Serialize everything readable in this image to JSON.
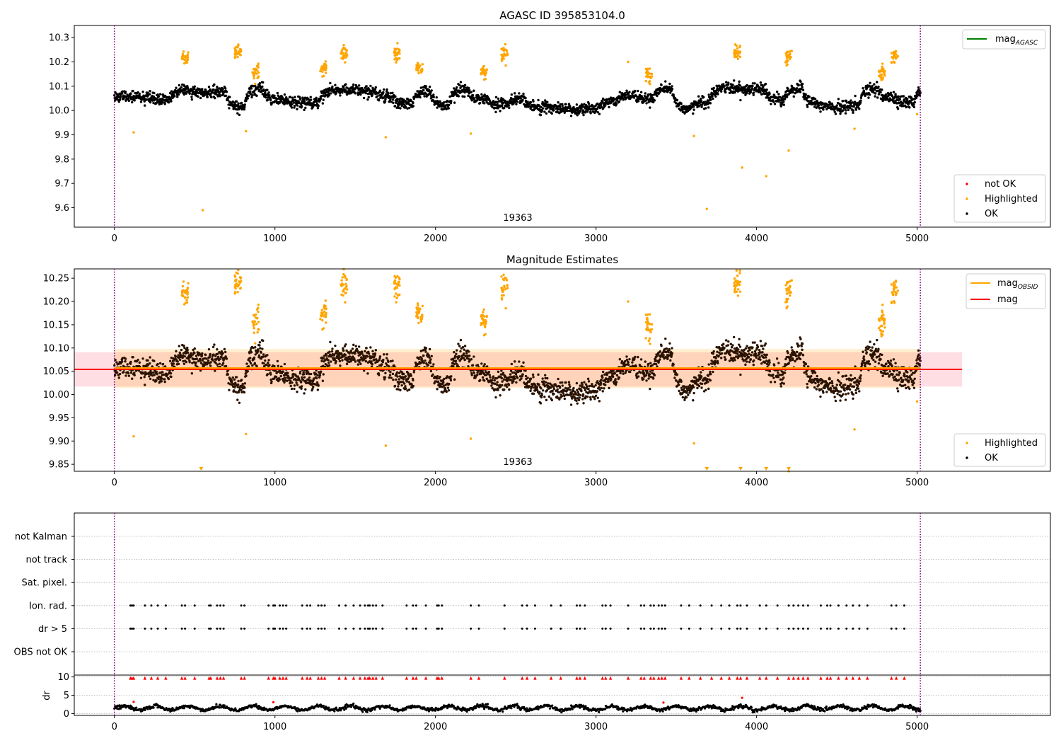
{
  "chart_data": [
    {
      "type": "scatter",
      "title": "AGASC ID 395853104.0",
      "xlim": [
        -250,
        5830
      ],
      "ylim": [
        9.52,
        10.35
      ],
      "xticks": [
        0,
        1000,
        2000,
        3000,
        4000,
        5000
      ],
      "yticks": [
        9.6,
        9.7,
        9.8,
        9.9,
        10.0,
        10.1,
        10.2,
        10.3
      ],
      "ytick_labels": [
        "9.6",
        "9.7",
        "9.8",
        "9.9",
        "10.0",
        "10.1",
        "10.2",
        "10.3"
      ],
      "vlines": [
        0,
        5020
      ],
      "annotation": {
        "x": 2500,
        "text": "19363"
      },
      "legend_lines": {
        "position": "top-right",
        "entries": [
          {
            "label": "mag",
            "subscript": "AGASC",
            "color": "#008000"
          }
        ]
      },
      "legend_points": {
        "position": "lower-right",
        "entries": [
          {
            "label": "not OK",
            "color": "#ff0000"
          },
          {
            "label": "Highlighted",
            "color": "#ffa500"
          },
          {
            "label": "OK",
            "color": "#000000"
          }
        ]
      },
      "series": [
        {
          "name": "OK",
          "color": "#000000",
          "x_range": [
            0,
            5020
          ],
          "baseline": 10.05,
          "spread": 0.03
        },
        {
          "name": "Highlighted",
          "color": "#ffa500",
          "clusters": [
            [
              440,
              10.22
            ],
            [
              770,
              10.235
            ],
            [
              880,
              10.155
            ],
            [
              1300,
              10.17
            ],
            [
              1430,
              10.23
            ],
            [
              1760,
              10.23
            ],
            [
              1900,
              10.175
            ],
            [
              2300,
              10.155
            ],
            [
              2430,
              10.235
            ],
            [
              3330,
              10.145
            ],
            [
              3880,
              10.24
            ],
            [
              4200,
              10.225
            ],
            [
              4860,
              10.225
            ],
            [
              4780,
              10.155
            ]
          ],
          "outliers": [
            [
              120,
              9.91
            ],
            [
              550,
              9.59
            ],
            [
              820,
              9.915
            ],
            [
              1690,
              9.89
            ],
            [
              2220,
              9.905
            ],
            [
              3200,
              10.2
            ],
            [
              3610,
              9.895
            ],
            [
              3690,
              9.595
            ],
            [
              3910,
              9.765
            ],
            [
              4060,
              9.73
            ],
            [
              4200,
              9.835
            ],
            [
              4610,
              9.925
            ],
            [
              5000,
              9.985
            ]
          ]
        },
        {
          "name": "not OK",
          "color": "#ff0000"
        }
      ]
    },
    {
      "type": "scatter",
      "title": "Magnitude Estimates",
      "xlim": [
        -250,
        5830
      ],
      "ylim": [
        9.835,
        10.27
      ],
      "xticks": [
        0,
        1000,
        2000,
        3000,
        4000,
        5000
      ],
      "yticks": [
        9.85,
        9.9,
        9.95,
        10.0,
        10.05,
        10.1,
        10.15,
        10.2,
        10.25
      ],
      "ytick_labels": [
        "9.85",
        "9.90",
        "9.95",
        "10.00",
        "10.05",
        "10.10",
        "10.15",
        "10.20",
        "10.25"
      ],
      "vlines": [
        0,
        5020
      ],
      "annotation": {
        "x": 2500,
        "text": "19363"
      },
      "mag": 10.054,
      "mag_band": [
        10.017,
        10.091
      ],
      "mag_obsid": 10.057,
      "mag_obsid_band": [
        10.014,
        10.098
      ],
      "mag_line_range": [
        -250,
        5280
      ],
      "mag_obsid_range": [
        0,
        5020
      ],
      "legend_lines": {
        "position": "top-right",
        "entries": [
          {
            "label": "mag",
            "subscript": "OBSID",
            "color": "#ffa500"
          },
          {
            "label": "mag",
            "subscript": "",
            "color": "#ff0000"
          }
        ]
      },
      "legend_points": {
        "position": "lower-right",
        "entries": [
          {
            "label": "Highlighted",
            "color": "#ffa500"
          },
          {
            "label": "OK",
            "color": "#000000"
          }
        ]
      },
      "clipped_markers": [
        540,
        3690,
        3900,
        4060,
        4200
      ]
    },
    {
      "type": "scatter",
      "title": "",
      "xlim": [
        -250,
        5830
      ],
      "flag_rows": [
        "not Kalman",
        "not track",
        "Sat. pixel.",
        "Ion. rad.",
        "dr > 5",
        "OBS not OK"
      ],
      "flag_x": [
        100,
        110,
        120,
        190,
        230,
        270,
        320,
        420,
        440,
        500,
        590,
        600,
        640,
        660,
        680,
        790,
        810,
        960,
        990,
        1000,
        1030,
        1050,
        1070,
        1170,
        1200,
        1220,
        1270,
        1290,
        1310,
        1400,
        1440,
        1490,
        1530,
        1560,
        1580,
        1590,
        1610,
        1630,
        1670,
        1820,
        1860,
        1880,
        1940,
        2010,
        2020,
        2040,
        2220,
        2270,
        2430,
        2540,
        2570,
        2620,
        2720,
        2780,
        2880,
        2900,
        2930,
        3040,
        3060,
        3090,
        3200,
        3280,
        3300,
        3340,
        3360,
        3390,
        3410,
        3430,
        3530,
        3580,
        3650,
        3720,
        3780,
        3830,
        3880,
        3900,
        3940,
        4020,
        4060,
        4130,
        4200,
        4230,
        4260,
        4290,
        4320,
        4400,
        4440,
        4460,
        4510,
        4560,
        4600,
        4640,
        4690,
        4840,
        4870,
        4920
      ],
      "vlines": [
        0,
        5020
      ]
    },
    {
      "type": "scatter",
      "ylabel": "dr",
      "xlim": [
        -250,
        5830
      ],
      "ylim": [
        -0.5,
        10.5
      ],
      "xticks": [
        0,
        1000,
        2000,
        3000,
        4000,
        5000
      ],
      "yticks": [
        0,
        5,
        10
      ],
      "ytick_labels": [
        "0",
        "5",
        "10"
      ],
      "dr_baseline": 1.5,
      "dr_clip": 10,
      "vlines": [
        0,
        5020
      ]
    }
  ]
}
